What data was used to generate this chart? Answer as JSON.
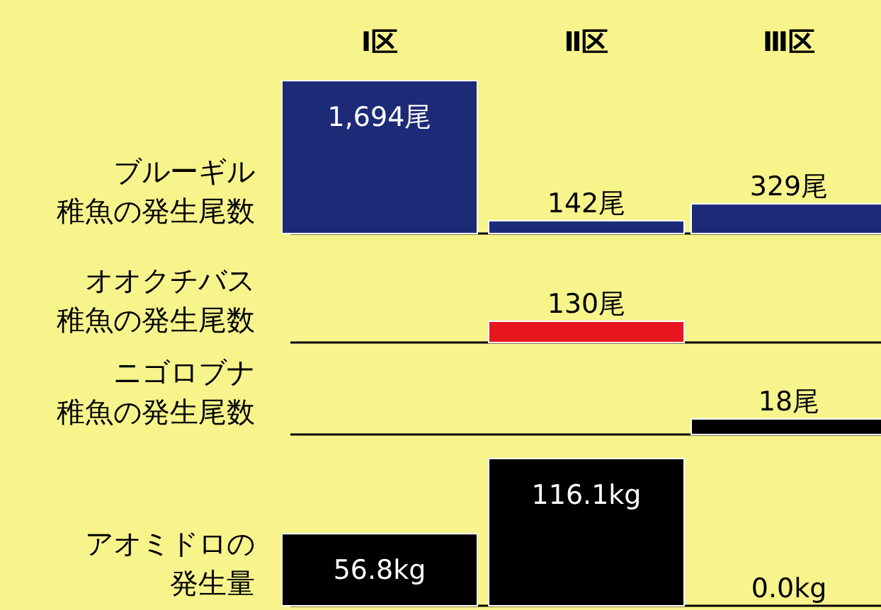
{
  "chart_data": [
    {
      "type": "bar",
      "ylabel": "ブルーギル稚魚の発生尾数",
      "categories": [
        "Ⅰ区",
        "Ⅱ区",
        "Ⅲ区"
      ],
      "values": [
        1694,
        142,
        329
      ],
      "value_labels": [
        "1,694尾",
        "142尾",
        "329尾"
      ],
      "color": "#1c2a78"
    },
    {
      "type": "bar",
      "ylabel": "オオクチバス稚魚の発生尾数",
      "categories": [
        null,
        null,
        null
      ],
      "values": [
        0,
        130,
        0
      ],
      "value_labels": [
        null,
        "130尾",
        null
      ],
      "color": "#e8141e"
    },
    {
      "type": "bar",
      "ylabel": "ニゴロブナ稚魚の発生尾数",
      "categories": [
        null,
        null,
        null
      ],
      "values": [
        0,
        0,
        18
      ],
      "value_labels": [
        null,
        null,
        "18尾"
      ],
      "color": "#000000"
    },
    {
      "type": "bar",
      "ylabel": "アオミドロの発生量",
      "categories": [
        null,
        null,
        null
      ],
      "values": [
        56.8,
        116.1,
        0.0
      ],
      "value_labels": [
        "56.8kg",
        "116.1kg",
        "0.0kg"
      ],
      "color": "#000000"
    }
  ]
}
